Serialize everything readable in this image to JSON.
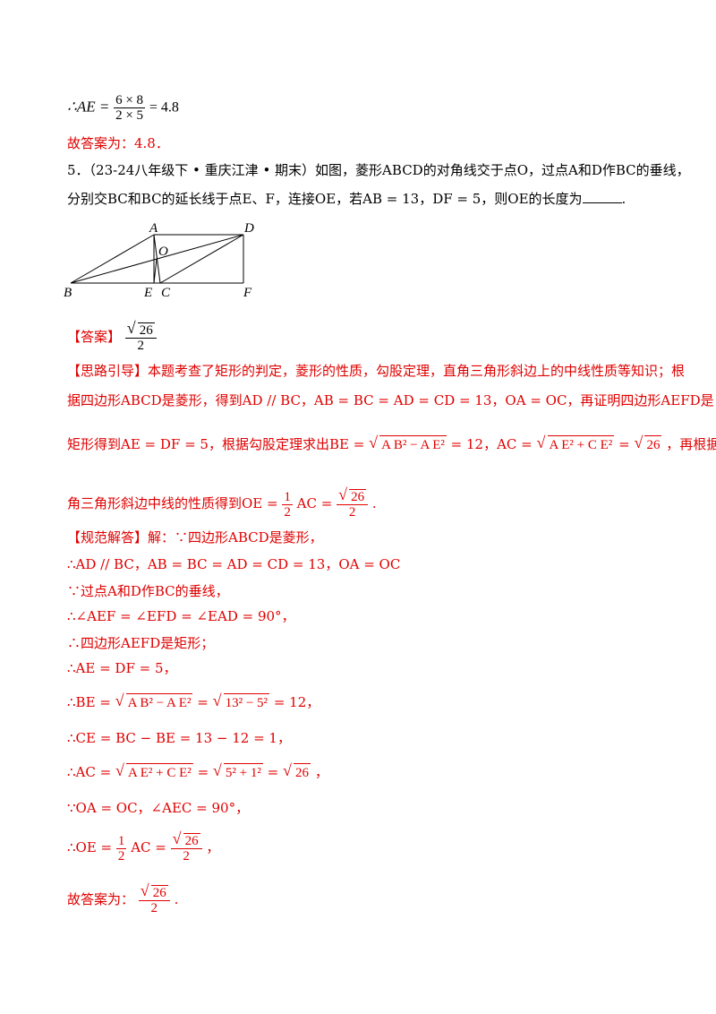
{
  "prev_result": {
    "lhs": "∴AE =",
    "num": "6 × 8",
    "den": "2 × 5",
    "rhs": "= 4.8"
  },
  "prev_answer": "故答案为：4.8．",
  "problem": {
    "line1": "5．（23-24八年级下 • 重庆江津 • 期末）如图，菱形ABCD的对角线交于点O，过点A和D作BC的垂线，",
    "line2_a": "分别交BC和BC的延长线于点E、F，连接OE，若AB = 13，DF = 5，则OE的长度为",
    "line2_end": "."
  },
  "figure_labels": {
    "A": "A",
    "D": "D",
    "O": "O",
    "B": "B",
    "E": "E",
    "C": "C",
    "F": "F"
  },
  "answer": {
    "label": "【答案】",
    "num": "26",
    "den": "2"
  },
  "hint": {
    "line1": "【思路引导】本题考查了矩形的判定，菱形的性质，勾股定理，直角三角形斜边上的中线性质等知识；根",
    "line2": "据四边形ABCD是菱形，得到AD // BC，AB = BC = AD = CD = 13，OA = OC，再证明四边形AEFD是",
    "line3_a": "矩形得到AE = DF = 5，根据勾股定理求出BE =",
    "line3_r1": "A B² − A E²",
    "line3_b": "= 12，AC =",
    "line3_r2": "A E² + C E²",
    "line3_c": "=",
    "line3_r3": "26",
    "line3_d": "，再根据直",
    "line4_a": "角三角形斜边中线的性质得到OE =",
    "line4_b": "AC =",
    "line4_end": "."
  },
  "solution": {
    "s1": "【规范解答】解：∵四边形ABCD是菱形，",
    "s2": "∴AD // BC，AB = BC = AD = CD = 13，OA = OC",
    "s3": "∵过点A和D作BC的垂线，",
    "s4": "∴∠AEF = ∠EFD = ∠EAD = 90°，",
    "s5": "∴四边形AEFD是矩形；",
    "s6": "∴AE = DF = 5，",
    "s7_a": "∴BE =",
    "s7_r1": "A B² − A E²",
    "s7_b": "=",
    "s7_r2": "13² − 5²",
    "s7_c": "= 12，",
    "s8": "∴CE = BC − BE = 13 − 12 = 1，",
    "s9_a": "∴AC =",
    "s9_r1": "A E² + C E²",
    "s9_b": "=",
    "s9_r2": "5² + 1²",
    "s9_c": "=",
    "s9_r3": "26",
    "s9_d": "，",
    "s10": "∵OA = OC，∠AEC = 90°，",
    "s11_a": "∴OE =",
    "s11_b": "AC =",
    "s11_end": "，",
    "final_a": "故答案为：",
    "final_end": "."
  },
  "half": {
    "num": "1",
    "den": "2"
  }
}
